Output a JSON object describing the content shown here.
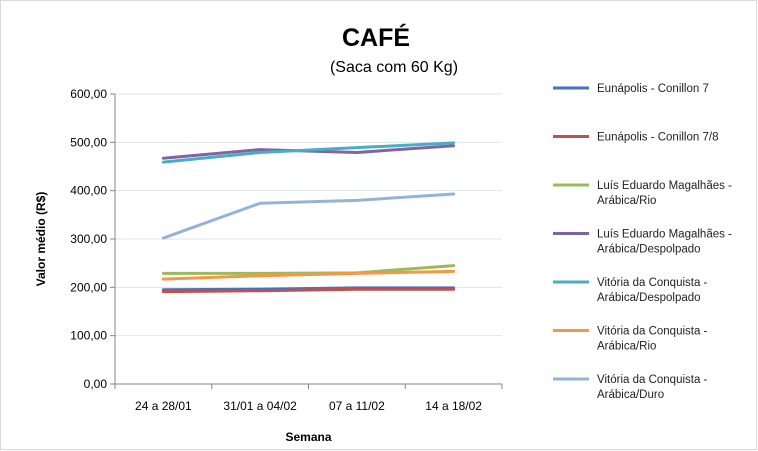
{
  "chart_data": {
    "type": "line",
    "title": "CAFÉ",
    "subtitle": "(Saca com 60 Kg)",
    "xlabel": "Semana",
    "ylabel": "Valor médio (R$)",
    "categories": [
      "24 a 28/01",
      "31/01 a 04/02",
      "07 a 11/02",
      "14 a 18/02"
    ],
    "ylim": [
      0,
      600
    ],
    "y_ticks": [
      0,
      100,
      200,
      300,
      400,
      500,
      600
    ],
    "y_tick_labels": [
      "0,00",
      "100,00",
      "200,00",
      "300,00",
      "400,00",
      "500,00",
      "600,00"
    ],
    "grid": true,
    "legend_position": "right",
    "series": [
      {
        "name_lines": [
          "Eunápolis - Conillon 7"
        ],
        "color": "#4472C4",
        "values": [
          195,
          196,
          199,
          199
        ]
      },
      {
        "name_lines": [
          "Eunápolis - Conillon 7/8"
        ],
        "color": "#C0504D",
        "values": [
          191,
          193,
          196,
          196
        ]
      },
      {
        "name_lines": [
          "Luís Eduardo Magalhães -",
          "Arábica/Rio"
        ],
        "color": "#9BBB59",
        "values": [
          229,
          229,
          230,
          245
        ]
      },
      {
        "name_lines": [
          "Luís Eduardo Magalhães -",
          "Arábica/Despolpado"
        ],
        "color": "#8064A2",
        "values": [
          467,
          485,
          479,
          493
        ]
      },
      {
        "name_lines": [
          "Vitória da Conquista -",
          "Arábica/Despolpado"
        ],
        "color": "#4BACC6",
        "values": [
          459,
          479,
          489,
          499
        ]
      },
      {
        "name_lines": [
          "Vitória da Conquista -",
          "Arábica/Rio"
        ],
        "color": "#F79646",
        "values": [
          217,
          224,
          229,
          233
        ]
      },
      {
        "name_lines": [
          "Vitória da Conquista -",
          "Arábica/Duro"
        ],
        "color": "#95B3D7",
        "values": [
          302,
          374,
          380,
          393
        ]
      }
    ]
  }
}
